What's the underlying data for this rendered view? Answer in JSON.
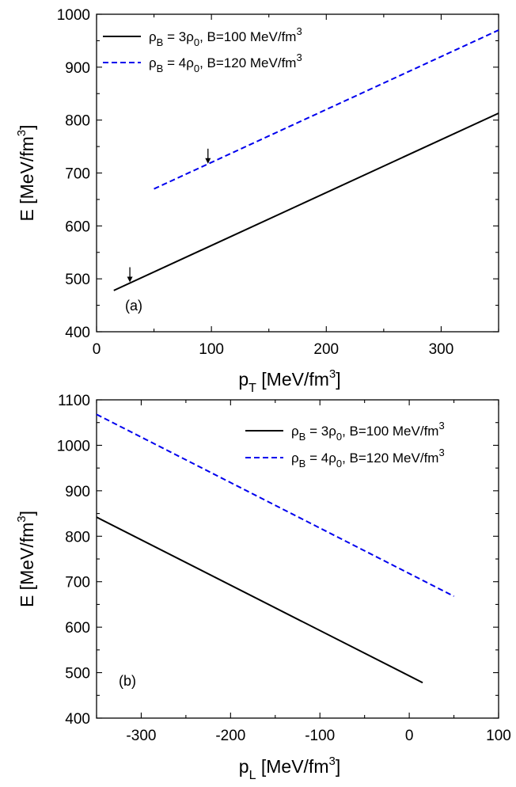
{
  "chart_data": [
    {
      "type": "line",
      "panel_label": "(a)",
      "xlabel": "p",
      "xlabel_sub": "T",
      "xlabel_unit": " [MeV/fm",
      "xlabel_sup": "3",
      "xlabel_close": "]",
      "ylabel": "E [MeV/fm",
      "ylabel_sup": "3",
      "ylabel_close": "]",
      "xlim": [
        0,
        350
      ],
      "ylim": [
        400,
        1000
      ],
      "x_ticks": [
        "0",
        "100",
        "200",
        "300"
      ],
      "y_ticks": [
        "400",
        "500",
        "600",
        "700",
        "800",
        "900",
        "1000"
      ],
      "legend_position": "top-left",
      "series": [
        {
          "name": "ρB = 3ρ0, B=100 MeV/fm3",
          "legend": {
            "rho": "ρ",
            "rho_sub": "B",
            "eq": " = 3",
            "rho0": "ρ",
            "rho0_sub": "0",
            "rest": ", B=100 MeV/fm",
            "sup": "3"
          },
          "style": "solid",
          "color": "#000000",
          "x": [
            15,
            350
          ],
          "y": [
            478,
            813
          ]
        },
        {
          "name": "ρB = 4ρ0, B=120 MeV/fm3",
          "legend": {
            "rho": "ρ",
            "rho_sub": "B",
            "eq": " = 4",
            "rho0": "ρ",
            "rho0_sub": "0",
            "rest": ", B=120 MeV/fm",
            "sup": "3"
          },
          "style": "dashed",
          "color": "#0000ee",
          "x": [
            50,
            350
          ],
          "y": [
            670,
            970
          ]
        }
      ],
      "annotations": [
        {
          "type": "arrow-down",
          "x": 29,
          "y": 492
        },
        {
          "type": "arrow-down",
          "x": 97,
          "y": 716
        }
      ]
    },
    {
      "type": "line",
      "panel_label": "(b)",
      "xlabel": "p",
      "xlabel_sub": "L",
      "xlabel_unit": " [MeV/fm",
      "xlabel_sup": "3",
      "xlabel_close": "]",
      "ylabel": "E [MeV/fm",
      "ylabel_sup": "3",
      "ylabel_close": "]",
      "xlim": [
        -350,
        100
      ],
      "ylim": [
        400,
        1100
      ],
      "x_ticks": [
        "-300",
        "-200",
        "-100",
        "0",
        "100"
      ],
      "y_ticks": [
        "400",
        "500",
        "600",
        "700",
        "800",
        "900",
        "1000",
        "1100"
      ],
      "legend_position": "top-right",
      "series": [
        {
          "name": "ρB = 3ρ0, B=100 MeV/fm3",
          "legend": {
            "rho": "ρ",
            "rho_sub": "B",
            "eq": " = 3",
            "rho0": "ρ",
            "rho0_sub": "0",
            "rest": ", B=100 MeV/fm",
            "sup": "3"
          },
          "style": "solid",
          "color": "#000000",
          "x": [
            -350,
            15
          ],
          "y": [
            842,
            478
          ]
        },
        {
          "name": "ρB = 4ρ0, B=120 MeV/fm3",
          "legend": {
            "rho": "ρ",
            "rho_sub": "B",
            "eq": " = 4",
            "rho0": "ρ",
            "rho0_sub": "0",
            "rest": ", B=120 MeV/fm",
            "sup": "3"
          },
          "style": "dashed",
          "color": "#0000ee",
          "x": [
            -350,
            50
          ],
          "y": [
            1068,
            668
          ]
        }
      ],
      "annotations": []
    }
  ]
}
